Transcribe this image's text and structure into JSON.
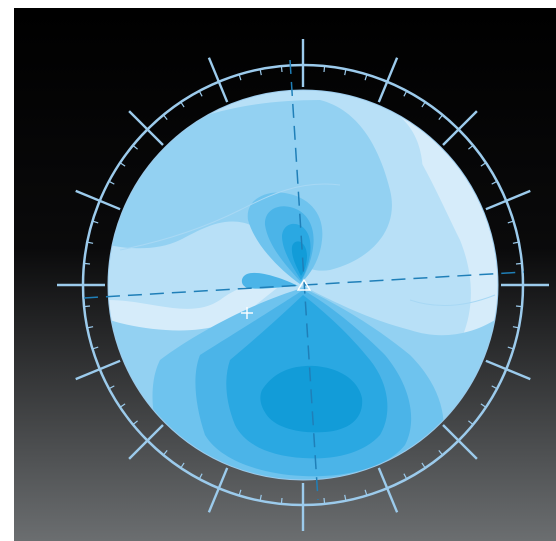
{
  "colors": {
    "page_background": "#ffffff",
    "panel_background_top": "#000000",
    "panel_background_bottom": "#6b6e70",
    "ring_color": "#9ccbec",
    "crosshair_color": "#1f7fb8",
    "contour_palette": [
      "#d6ecfa",
      "#b8e0f7",
      "#93d1f2",
      "#6ec3ee",
      "#4bb4e8",
      "#2aa8e2",
      "#129cd8"
    ]
  },
  "diagram": {
    "type": "polar contour plot with compass bezel",
    "tick_major_count": 16,
    "tick_minor_per_major": 4,
    "markers": [
      "triangle-marker",
      "plus-marker"
    ]
  }
}
